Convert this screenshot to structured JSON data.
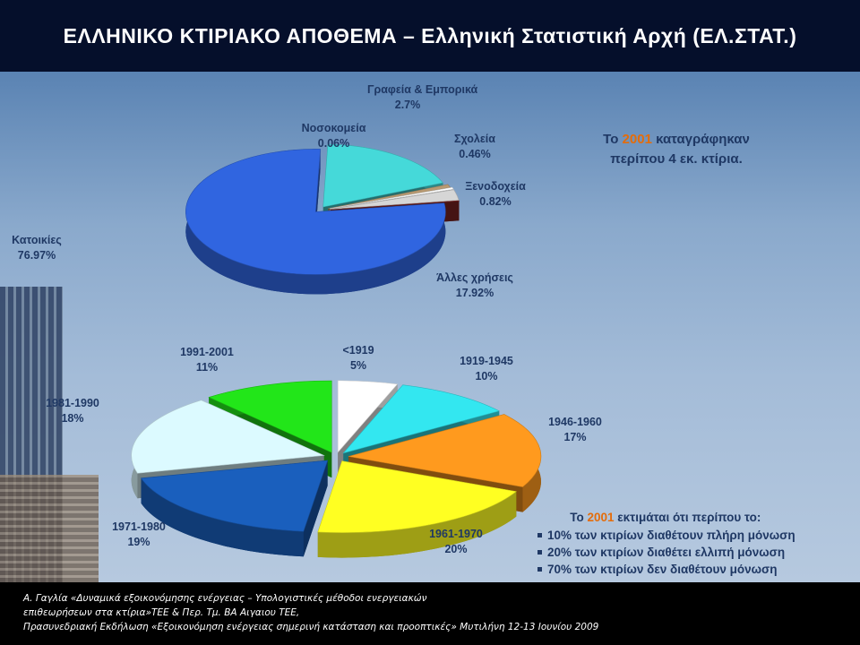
{
  "title": "ΕΛΛΗΝΙΚΟ ΚΤΙΡΙΑΚΟ ΑΠΟΘΕΜΑ – Ελληνική Στατιστική Αρχή (ΕΛ.ΣΤΑΤ.)",
  "chart_data": [
    {
      "type": "pie",
      "title": "",
      "slices": [
        {
          "label": "Κατοικίες",
          "value": 76.97,
          "value_label": "76.97%",
          "color": "#3065e0"
        },
        {
          "label": "Άλλες χρήσεις",
          "value": 17.92,
          "value_label": "17.92%",
          "color": "#45d9d9"
        },
        {
          "label": "Ξενοδοχεία",
          "value": 0.82,
          "value_label": "0.82%",
          "color": "#b89a72"
        },
        {
          "label": "Σχολεία",
          "value": 0.46,
          "value_label": "0.46%",
          "color": "#ffffff"
        },
        {
          "label": "Γραφεία & Εμπορικά",
          "value": 2.7,
          "value_label": "2.7%",
          "color": "#d6d6d6"
        },
        {
          "label": "Νοσοκομεία",
          "value": 0.06,
          "value_label": "0.06%",
          "color": "#8a2828"
        }
      ]
    },
    {
      "type": "pie",
      "title": "",
      "slices": [
        {
          "label": "<1919",
          "value": 5,
          "value_label": "5%",
          "color": "#ffffff"
        },
        {
          "label": "1919-1945",
          "value": 10,
          "value_label": "10%",
          "color": "#33e7f0"
        },
        {
          "label": "1946-1960",
          "value": 17,
          "value_label": "17%",
          "color": "#ff9a1e"
        },
        {
          "label": "1961-1970",
          "value": 20,
          "value_label": "20%",
          "color": "#ffff22"
        },
        {
          "label": "1971-1980",
          "value": 19,
          "value_label": "19%",
          "color": "#1a5fbd"
        },
        {
          "label": "1981-1990",
          "value": 18,
          "value_label": "18%",
          "color": "#dcfaff"
        },
        {
          "label": "1991-2001",
          "value": 11,
          "value_label": "11%",
          "color": "#22e619"
        }
      ]
    }
  ],
  "note1": {
    "pre": "Το ",
    "year": "2001",
    "post": " καταγράφηκαν",
    "line2": "περίπου 4 εκ. κτίρια."
  },
  "note2": {
    "pre": "Το ",
    "year": "2001",
    "post": " εκτιμάται ότι περίπου το:",
    "bullets": [
      "10% των κτιρίων διαθέτουν πλήρη μόνωση",
      "20% των κτιρίων διαθέτει ελλιπή μόνωση",
      "70% των κτιρίων δεν διαθέτουν μόνωση"
    ]
  },
  "footer": [
    "Α. Γαγλία «Δυναμικά εξοικονόμησης ενέργειας – Υπολογιστικές μέθοδοι ενεργειακών",
    "επιθεωρήσεων στα κτίρια»ΤΕΕ & Περ. Τμ. ΒΑ Αιγαιου ΤΕΕ,",
    "Πρασυνεδριακή Εκδήλωση «Εξοικονόμηση ενέργειας σημερινή κατάσταση και προοπτικές» Μυτιλήνη 12-13 Ιουνίου 2009"
  ]
}
